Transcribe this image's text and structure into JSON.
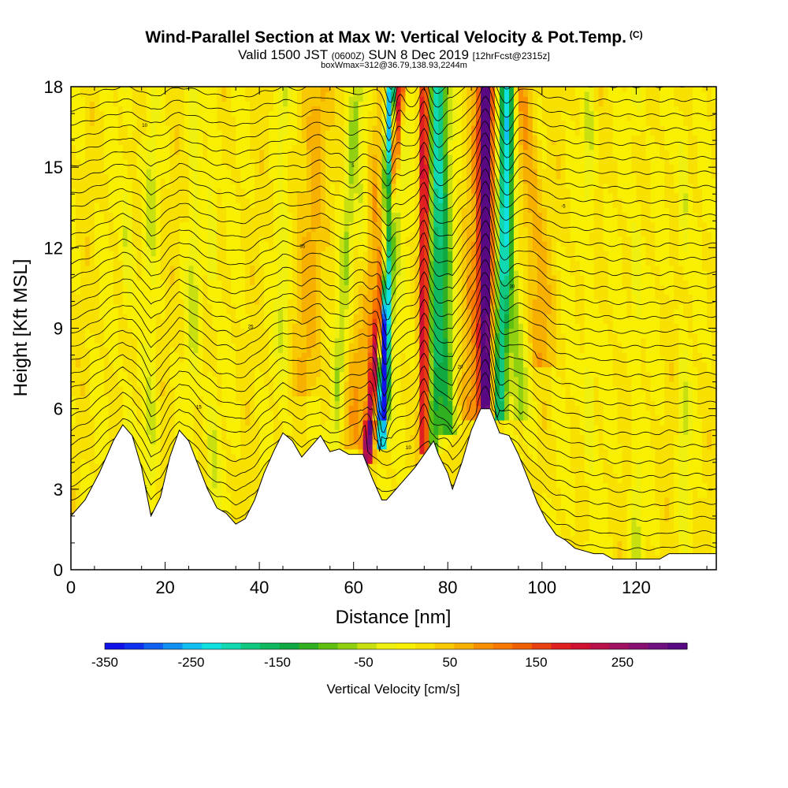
{
  "header": {
    "title": "Wind-Parallel Section at Max W: Vertical Velocity & Pot.Temp.",
    "copyright": "(C)",
    "subtitle_a": "Valid 1500 JST",
    "subtitle_b": "(0600Z)",
    "subtitle_c": "SUN 8 Dec 2019",
    "subtitle_d": "[12hrFcst@2315z]",
    "subtitle2": "boxWmax=312@36.79,138.93,2244m"
  },
  "chart_data": {
    "type": "heatmap",
    "xlabel": "Distance [nm]",
    "ylabel": "Height [Kft MSL]",
    "xlim": [
      0,
      137
    ],
    "ylim": [
      0,
      18
    ],
    "xticks": [
      0,
      20,
      40,
      60,
      80,
      100,
      120
    ],
    "yticks": [
      0,
      3,
      6,
      9,
      12,
      15,
      18
    ],
    "terrain": {
      "x": [
        0,
        3,
        6,
        9,
        11,
        13,
        15,
        17,
        19,
        21,
        23,
        25,
        27,
        29,
        31,
        33,
        35,
        37,
        39,
        41,
        43,
        45,
        47,
        49,
        51,
        53,
        55,
        57,
        59,
        61,
        62,
        64,
        66,
        67,
        69,
        71,
        73,
        75,
        77,
        78,
        80,
        81,
        83,
        85,
        87,
        89,
        91,
        93,
        95,
        97,
        99,
        101,
        103,
        105,
        107,
        109,
        111,
        113,
        115,
        117,
        119,
        121,
        123,
        125,
        127,
        130,
        133,
        135,
        137
      ],
      "y": [
        2.0,
        2.6,
        3.6,
        4.8,
        5.4,
        5.0,
        3.8,
        2.0,
        2.7,
        4.2,
        5.2,
        4.8,
        3.9,
        3.0,
        2.3,
        2.1,
        1.7,
        1.9,
        2.6,
        3.6,
        4.4,
        5.1,
        4.8,
        4.2,
        4.6,
        5.0,
        4.4,
        4.5,
        4.3,
        4.3,
        4.3,
        3.4,
        2.6,
        2.6,
        3.0,
        3.4,
        3.8,
        4.3,
        4.8,
        4.3,
        3.6,
        3.0,
        4.0,
        5.2,
        6.0,
        6.0,
        5.1,
        5.0,
        4.3,
        3.4,
        2.5,
        1.8,
        1.3,
        1.1,
        0.8,
        0.7,
        0.6,
        0.6,
        0.4,
        0.4,
        0.4,
        0.4,
        0.4,
        0.4,
        0.6,
        0.6,
        0.6,
        0.6,
        0.6
      ]
    },
    "isentrope_labels": [
      "-5",
      "5",
      "10",
      "15",
      "20",
      "25",
      "30",
      "35"
    ],
    "colorbar": {
      "title": "Vertical Velocity [cm/s]",
      "tick_labels": [
        "-350",
        "-250",
        "-150",
        "-50",
        "50",
        "150",
        "250"
      ],
      "tick_values": [
        -350,
        -250,
        -150,
        -50,
        50,
        150,
        250
      ],
      "range": [
        -350,
        325
      ],
      "colors": [
        "#1010e8",
        "#1030f0",
        "#1060f0",
        "#1090f0",
        "#10c0f0",
        "#10e0e0",
        "#10d8b0",
        "#10c880",
        "#10b860",
        "#10a840",
        "#30b020",
        "#60c010",
        "#90d010",
        "#c8e010",
        "#f0f010",
        "#f8f000",
        "#f8e000",
        "#f8c800",
        "#f8b000",
        "#f89000",
        "#f87800",
        "#f06000",
        "#e84010",
        "#e02020",
        "#d01030",
        "#b81048",
        "#a01060",
        "#881070",
        "#701080",
        "#580880"
      ]
    }
  }
}
